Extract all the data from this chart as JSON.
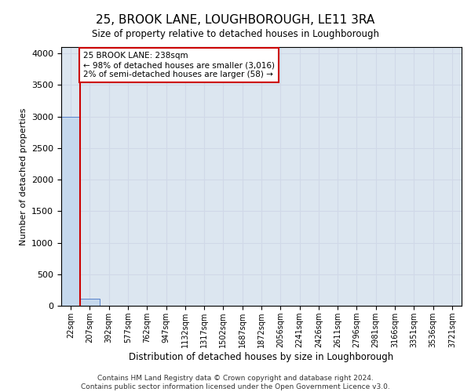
{
  "title": "25, BROOK LANE, LOUGHBOROUGH, LE11 3RA",
  "subtitle": "Size of property relative to detached houses in Loughborough",
  "xlabel": "Distribution of detached houses by size in Loughborough",
  "ylabel": "Number of detached properties",
  "footnote1": "Contains HM Land Registry data © Crown copyright and database right 2024.",
  "footnote2": "Contains public sector information licensed under the Open Government Licence v3.0.",
  "bin_labels": [
    "22sqm",
    "207sqm",
    "392sqm",
    "577sqm",
    "762sqm",
    "947sqm",
    "1132sqm",
    "1317sqm",
    "1502sqm",
    "1687sqm",
    "1872sqm",
    "2056sqm",
    "2241sqm",
    "2426sqm",
    "2611sqm",
    "2796sqm",
    "2981sqm",
    "3166sqm",
    "3351sqm",
    "3536sqm",
    "3721sqm"
  ],
  "bar_heights": [
    3000,
    110,
    5,
    1,
    1,
    0,
    0,
    0,
    0,
    0,
    0,
    0,
    0,
    0,
    0,
    0,
    0,
    0,
    0,
    0,
    0
  ],
  "bar_color": "#c5d8ed",
  "bar_edge_color": "#4472c4",
  "property_line_color": "#cc0000",
  "ylim": [
    0,
    4100
  ],
  "yticks": [
    0,
    500,
    1000,
    1500,
    2000,
    2500,
    3000,
    3500,
    4000
  ],
  "annotation_text": "25 BROOK LANE: 238sqm\n← 98% of detached houses are smaller (3,016)\n2% of semi-detached houses are larger (58) →",
  "annotation_box_color": "#ffffff",
  "annotation_border_color": "#cc0000",
  "grid_color": "#d0d8e8",
  "background_color": "#dce6f0"
}
